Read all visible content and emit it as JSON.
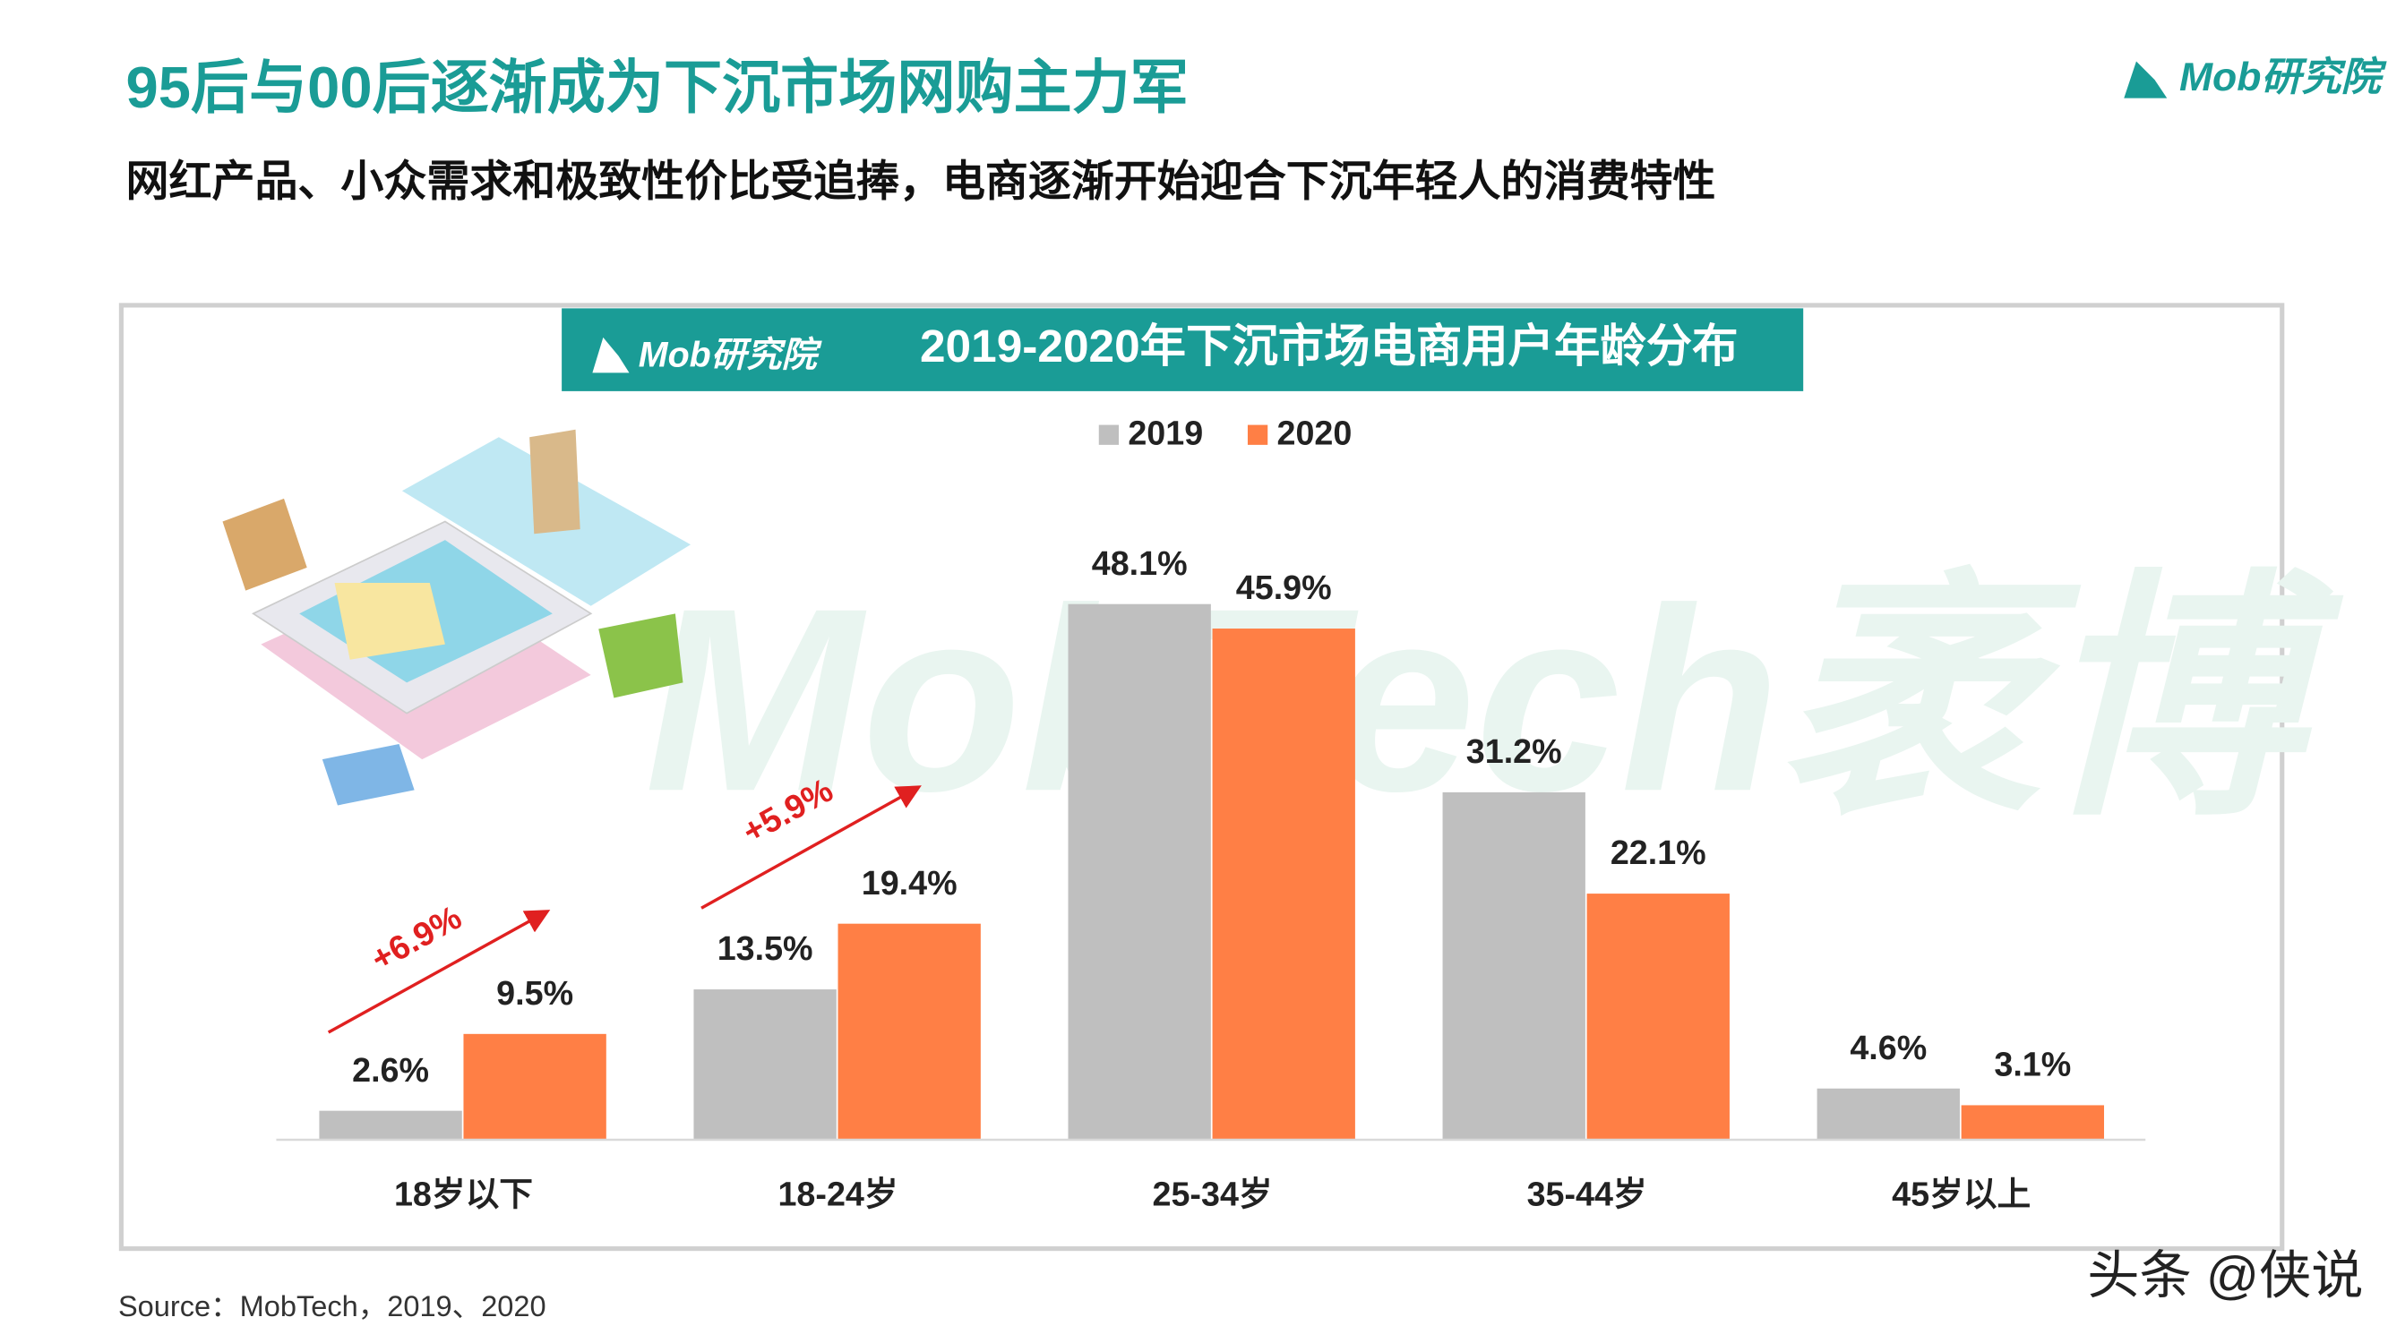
{
  "header": {
    "title": "95后与00后逐渐成为下沉市场网购主力军",
    "subtitle": "网红产品、小众需求和极致性价比受追捧，电商逐渐开始迎合下沉年轻人的消费特性",
    "logo": "Mob研究院"
  },
  "chart_data": {
    "type": "bar",
    "title": "2019-2020年下沉市场电商用户年龄分布",
    "logo": "Mob研究院",
    "watermark": "MobTech袤博",
    "categories": [
      "18岁以下",
      "18-24岁",
      "25-34岁",
      "35-44岁",
      "45岁以上"
    ],
    "series": [
      {
        "name": "2019",
        "color": "#bfbfbf",
        "values": [
          2.6,
          13.5,
          48.1,
          31.2,
          4.6
        ],
        "value_labels": [
          "2.6%",
          "13.5%",
          "48.1%",
          "31.2%",
          "4.6%"
        ]
      },
      {
        "name": "2020",
        "color": "#ff7f45",
        "values": [
          9.5,
          19.4,
          45.9,
          22.1,
          3.1
        ],
        "value_labels": [
          "9.5%",
          "19.4%",
          "45.9%",
          "22.1%",
          "3.1%"
        ]
      }
    ],
    "ylim": [
      0,
      50
    ],
    "legend": "top",
    "annotations": [
      {
        "text": "+6.9%"
      },
      {
        "text": "+5.9%"
      }
    ]
  },
  "footer": {
    "source": "Source：MobTech，2019、2020",
    "watermark": "头条 @侠说"
  }
}
